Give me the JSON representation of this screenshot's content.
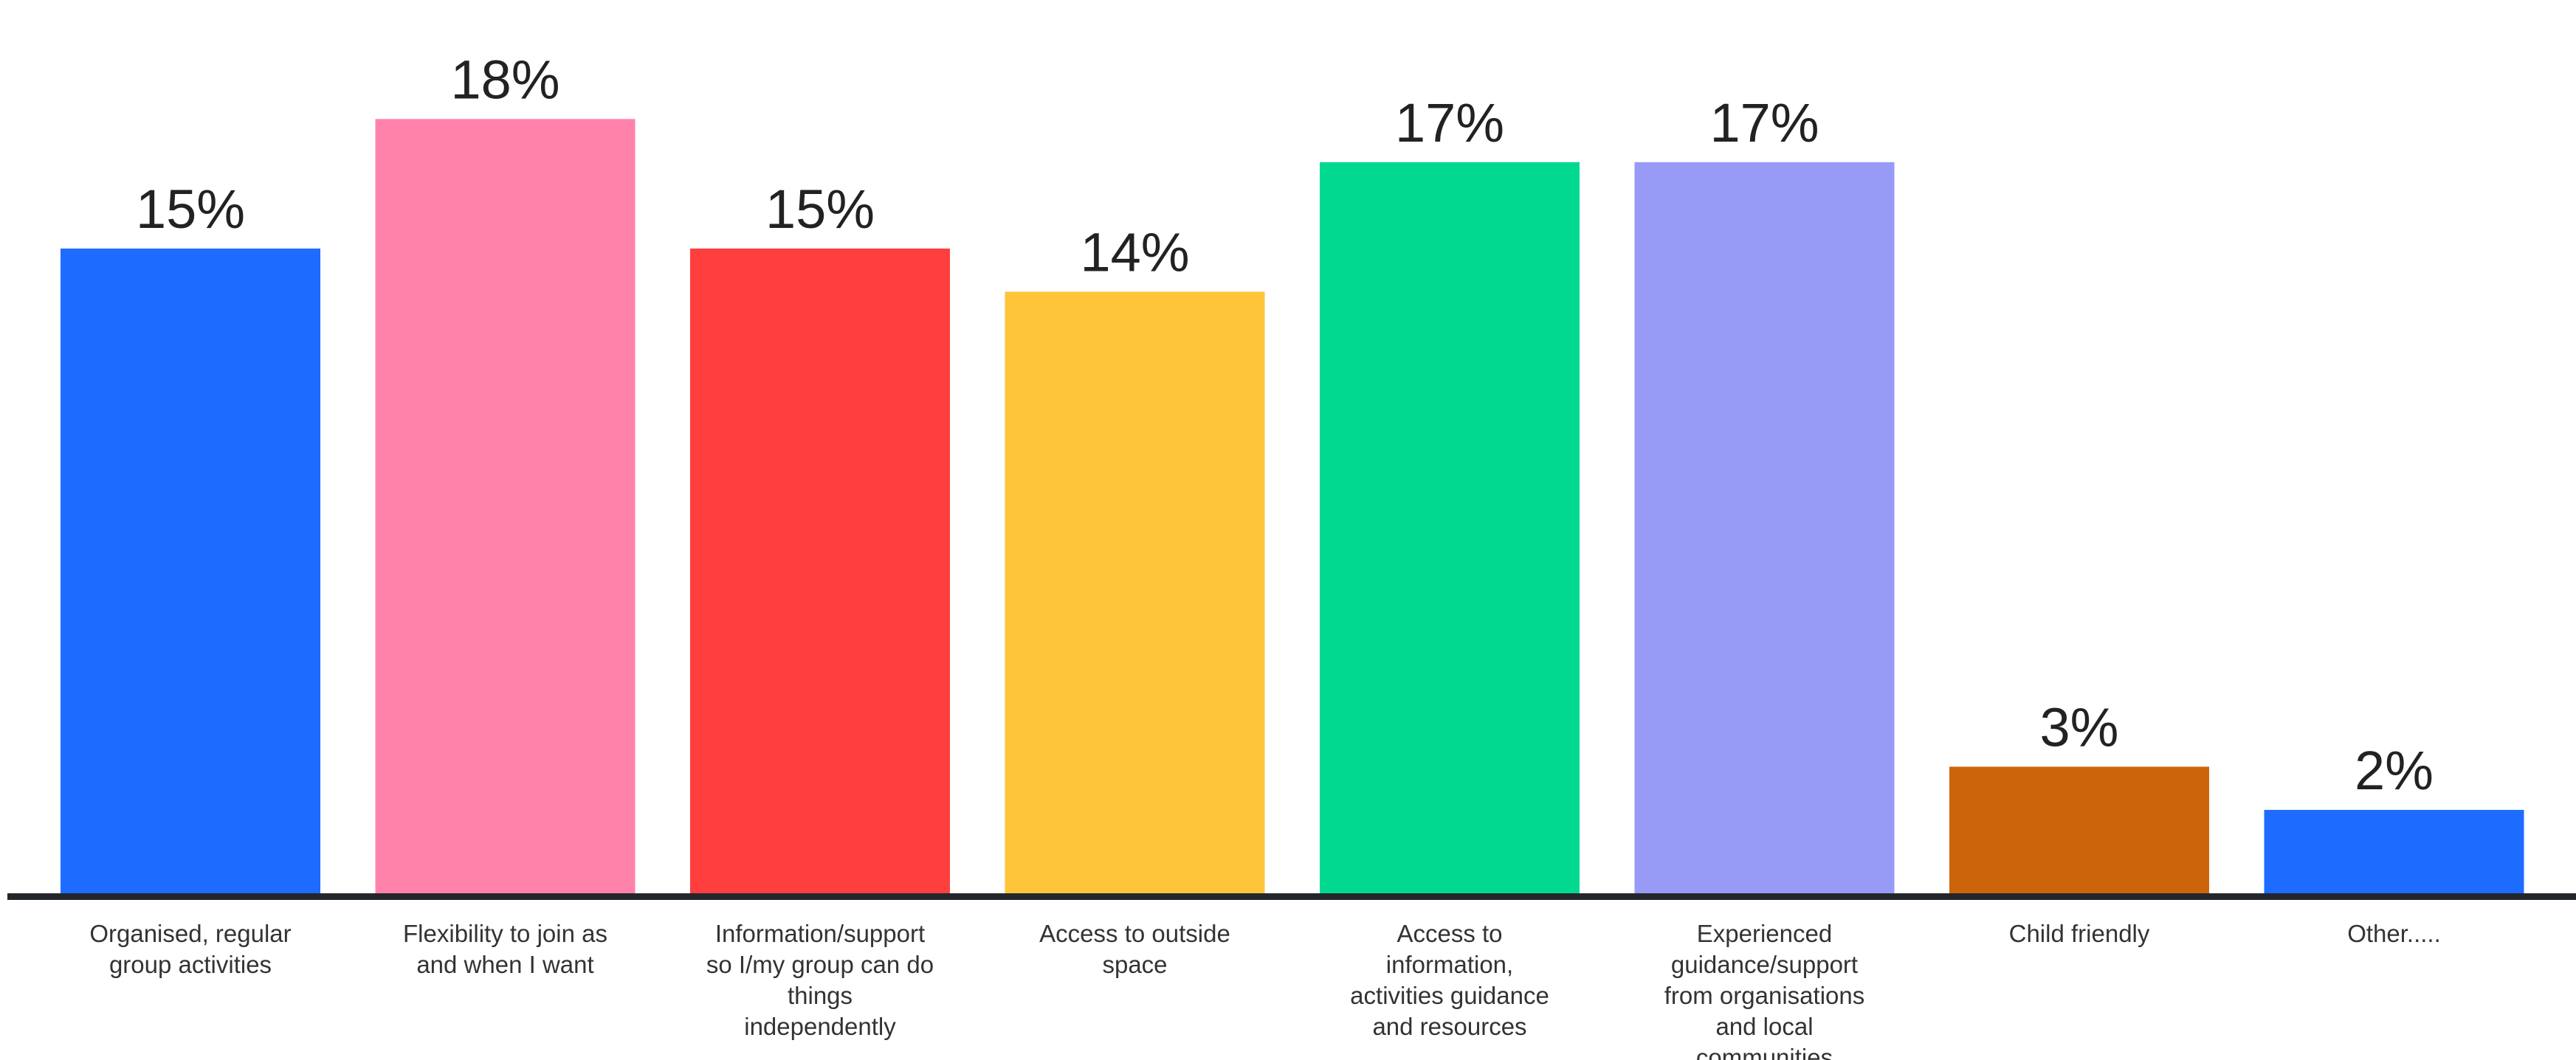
{
  "chart_data": {
    "type": "bar",
    "categories": [
      [
        "Organised, regular",
        "group activities"
      ],
      [
        "Flexibility to join as",
        "and when I want"
      ],
      [
        "Information/support",
        "so I/my group can do",
        "things",
        "independently"
      ],
      [
        "Access to outside",
        "space"
      ],
      [
        "Access to",
        "information,",
        "activities guidance",
        "and resources"
      ],
      [
        "Experienced",
        "guidance/support",
        "from organisations",
        "and local",
        "communities"
      ],
      [
        "Child friendly"
      ],
      [
        "Other....."
      ]
    ],
    "values": [
      15,
      18,
      15,
      14,
      17,
      17,
      3,
      2
    ],
    "data_labels": [
      "15%",
      "18%",
      "15%",
      "14%",
      "17%",
      "17%",
      "3%",
      "2%"
    ],
    "colors": [
      "#1E6BFF",
      "#FF82AB",
      "#FF3E3E",
      "#FFC53A",
      "#00D98F",
      "#979BF5",
      "#CC640C",
      "#1E6BFF"
    ],
    "axis_color": "#23262B",
    "title": "",
    "xlabel": "",
    "ylabel": "",
    "ylim": [
      0,
      20
    ],
    "grid": false,
    "legend": "none"
  }
}
